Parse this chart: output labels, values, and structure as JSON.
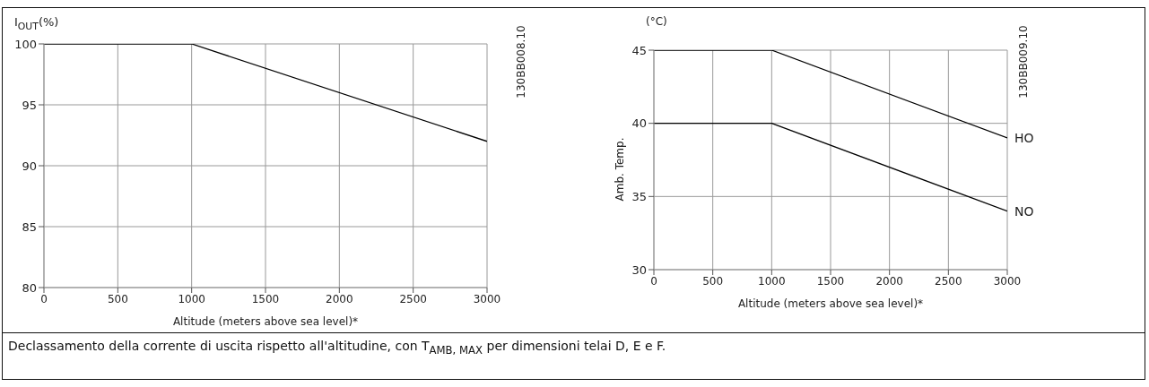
{
  "chart_data": [
    {
      "type": "line",
      "ylabel": "I$_{OUT}$(%)",
      "xlabel": "Altitude (meters above sea level)*",
      "x": [
        0,
        1000,
        3000
      ],
      "series": [
        {
          "color": "#000000",
          "values": [
            100,
            100,
            92
          ]
        }
      ],
      "xlim": [
        0,
        3000
      ],
      "xticks": [
        0,
        500,
        1000,
        1500,
        2000,
        2500,
        3000
      ],
      "ylim": [
        80,
        100
      ],
      "yticks": [
        80,
        85,
        90,
        95,
        100
      ],
      "grid": true,
      "legend": false,
      "marker": "none",
      "line_style": "solid",
      "annotations": [
        "130BB008.10",
        "Declassamento della corrente di uscita rispetto all'altitudine, con T$_{AMB, MAX}$ per dimensioni telai D, E e F."
      ]
    },
    {
      "type": "line",
      "ylabel": "Amb. Temp.",
      "xlabel": "Altitude (meters above sea level)*",
      "x": [
        0,
        1000,
        3000
      ],
      "series": [
        {
          "name": "HO",
          "color": "#000000",
          "values": [
            45,
            45,
            39
          ]
        },
        {
          "name": "NO",
          "color": "#000000",
          "values": [
            40,
            40,
            34
          ]
        }
      ],
      "xlim": [
        0,
        3000
      ],
      "xticks": [
        0,
        500,
        1000,
        1500,
        2000,
        2500,
        3000
      ],
      "ylim": [
        30,
        45
      ],
      "yticks": [
        30,
        35,
        40,
        45
      ],
      "grid": true,
      "legend": false,
      "marker": "none",
      "line_style": "solid",
      "annotations": [
        "(°C)",
        "130BB009.10"
      ]
    }
  ]
}
